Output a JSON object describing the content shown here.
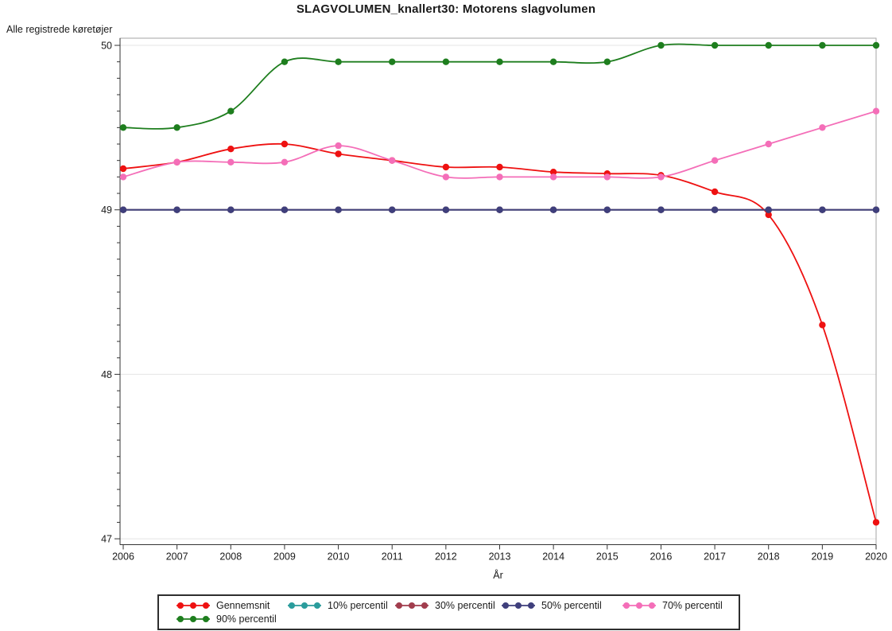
{
  "title": "SLAGVOLUMEN_knallert30: Motorens slagvolumen",
  "chart_data": {
    "type": "line",
    "title": "SLAGVOLUMEN_knallert30: Motorens slagvolumen",
    "xlabel": "År",
    "ylabel": "Alle registrede køretøjer",
    "x": [
      2006,
      2007,
      2008,
      2009,
      2010,
      2011,
      2012,
      2013,
      2014,
      2015,
      2016,
      2017,
      2018,
      2019,
      2020
    ],
    "x_tick_labels": [
      "2006",
      "2007",
      "2008",
      "2009",
      "2010",
      "2011",
      "2012",
      "2013",
      "2014",
      "2015",
      "2016",
      "2017",
      "2018",
      "2019",
      "2020"
    ],
    "ylim": [
      47,
      50
    ],
    "y_major_ticks": [
      47,
      48,
      49,
      50
    ],
    "y_tick_labels": [
      "47",
      "48",
      "49",
      "50"
    ],
    "y_minor_step": 0.1,
    "grid": "horizontal-major-light-gray",
    "line_style": "smooth-spline",
    "marker": "filled-circle",
    "legend_position": "bottom",
    "series": [
      {
        "name": "Gennemsnit",
        "color": "#ee1111",
        "values": [
          49.25,
          49.29,
          49.37,
          49.4,
          49.34,
          49.3,
          49.26,
          49.26,
          49.23,
          49.22,
          49.21,
          49.11,
          48.97,
          48.3,
          47.1
        ]
      },
      {
        "name": "10% percentil",
        "color": "#2a9c9c",
        "values": [
          49,
          49,
          49,
          49,
          49,
          49,
          49,
          49,
          49,
          49,
          49,
          49,
          49,
          49,
          49
        ]
      },
      {
        "name": "30% percentil",
        "color": "#a13d4d",
        "values": [
          49,
          49,
          49,
          49,
          49,
          49,
          49,
          49,
          49,
          49,
          49,
          49,
          49,
          49,
          49
        ]
      },
      {
        "name": "50% percentil",
        "color": "#3f3f7c",
        "values": [
          49,
          49,
          49,
          49,
          49,
          49,
          49,
          49,
          49,
          49,
          49,
          49,
          49,
          49,
          49
        ]
      },
      {
        "name": "70% percentil",
        "color": "#f46eb8",
        "values": [
          49.2,
          49.29,
          49.29,
          49.29,
          49.39,
          49.3,
          49.2,
          49.2,
          49.2,
          49.2,
          49.2,
          49.3,
          49.4,
          49.5,
          49.6
        ]
      },
      {
        "name": "90% percentil",
        "color": "#1e7e1e",
        "values": [
          49.5,
          49.5,
          49.6,
          49.9,
          49.9,
          49.9,
          49.9,
          49.9,
          49.9,
          49.9,
          50.0,
          50.0,
          50.0,
          50.0,
          50.0
        ]
      }
    ],
    "colors": {
      "grid": "#e4e4e4",
      "frame": "#a6a6a6",
      "axis": "#333333",
      "text": "#1a1a1a"
    }
  }
}
